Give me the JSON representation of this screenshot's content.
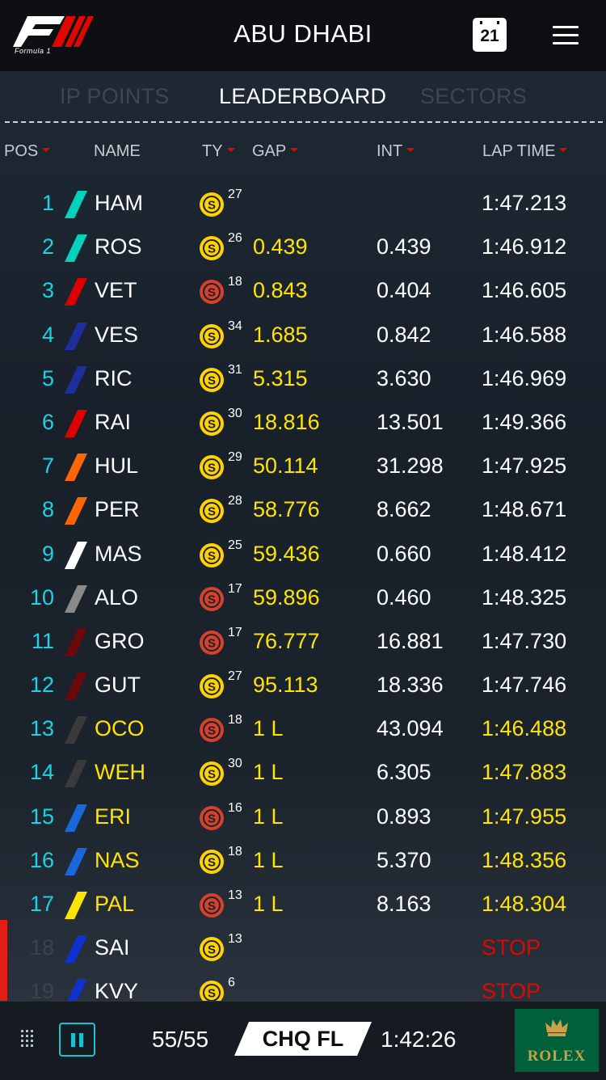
{
  "header": {
    "title": "ABU DHABI",
    "logo_text": "Formula 1",
    "calendar_day": "21"
  },
  "tabs": [
    {
      "label": "CHAMPIONSHIP POINTS",
      "visible_label": "IP POINTS",
      "active": false
    },
    {
      "label": "LEADERBOARD",
      "active": true
    },
    {
      "label": "SECTORS",
      "active": false
    }
  ],
  "columns": {
    "pos": "POS",
    "name": "NAME",
    "tyre": "TY",
    "gap": "GAP",
    "int": "INT",
    "lap_time": "LAP TIME"
  },
  "colors": {
    "mercedes": "#00d2be",
    "ferrari": "#dc0000",
    "red_bull": "#1e2e9c",
    "force_india": "#ff6600",
    "williams": "#ffffff",
    "mclaren": "#8a8a8a",
    "haas": "#6b0a0a",
    "manor": "#3a3a3a",
    "sauber": "#1868db",
    "renault": "#ffe400",
    "toro_rosso": "#1030d0",
    "soft_tyre": "#ffd200",
    "supersoft_tyre": "#d5412a",
    "accent_cyan": "#19d3e6",
    "highlight_yellow": "#ffe400"
  },
  "drivers": [
    {
      "pos": "1",
      "name": "HAM",
      "team": "mercedes",
      "tyre": "soft",
      "tyre_letter": "S",
      "laps": "27",
      "gap": "",
      "int": "",
      "lap_time": "1:47.213",
      "name_style": "white",
      "lap_style": "white"
    },
    {
      "pos": "2",
      "name": "ROS",
      "team": "mercedes",
      "tyre": "soft",
      "tyre_letter": "S",
      "laps": "26",
      "gap": "0.439",
      "int": "0.439",
      "lap_time": "1:46.912",
      "name_style": "white",
      "lap_style": "white"
    },
    {
      "pos": "3",
      "name": "VET",
      "team": "ferrari",
      "tyre": "supersoft",
      "tyre_letter": "S",
      "laps": "18",
      "gap": "0.843",
      "int": "0.404",
      "lap_time": "1:46.605",
      "name_style": "white",
      "lap_style": "white"
    },
    {
      "pos": "4",
      "name": "VES",
      "team": "red_bull",
      "tyre": "soft",
      "tyre_letter": "S",
      "laps": "34",
      "gap": "1.685",
      "int": "0.842",
      "lap_time": "1:46.588",
      "name_style": "white",
      "lap_style": "white"
    },
    {
      "pos": "5",
      "name": "RIC",
      "team": "red_bull",
      "tyre": "soft",
      "tyre_letter": "S",
      "laps": "31",
      "gap": "5.315",
      "int": "3.630",
      "lap_time": "1:46.969",
      "name_style": "white",
      "lap_style": "white"
    },
    {
      "pos": "6",
      "name": "RAI",
      "team": "ferrari",
      "tyre": "soft",
      "tyre_letter": "S",
      "laps": "30",
      "gap": "18.816",
      "int": "13.501",
      "lap_time": "1:49.366",
      "name_style": "white",
      "lap_style": "white"
    },
    {
      "pos": "7",
      "name": "HUL",
      "team": "force_india",
      "tyre": "soft",
      "tyre_letter": "S",
      "laps": "29",
      "gap": "50.114",
      "int": "31.298",
      "lap_time": "1:47.925",
      "name_style": "white",
      "lap_style": "white"
    },
    {
      "pos": "8",
      "name": "PER",
      "team": "force_india",
      "tyre": "soft",
      "tyre_letter": "S",
      "laps": "28",
      "gap": "58.776",
      "int": "8.662",
      "lap_time": "1:48.671",
      "name_style": "white",
      "lap_style": "white"
    },
    {
      "pos": "9",
      "name": "MAS",
      "team": "williams",
      "tyre": "soft",
      "tyre_letter": "S",
      "laps": "25",
      "gap": "59.436",
      "int": "0.660",
      "lap_time": "1:48.412",
      "name_style": "white",
      "lap_style": "white"
    },
    {
      "pos": "10",
      "name": "ALO",
      "team": "mclaren",
      "tyre": "supersoft",
      "tyre_letter": "S",
      "laps": "17",
      "gap": "59.896",
      "int": "0.460",
      "lap_time": "1:48.325",
      "name_style": "white",
      "lap_style": "white"
    },
    {
      "pos": "11",
      "name": "GRO",
      "team": "haas",
      "tyre": "supersoft",
      "tyre_letter": "S",
      "laps": "17",
      "gap": "76.777",
      "int": "16.881",
      "lap_time": "1:47.730",
      "name_style": "white",
      "lap_style": "white"
    },
    {
      "pos": "12",
      "name": "GUT",
      "team": "haas",
      "tyre": "soft",
      "tyre_letter": "S",
      "laps": "27",
      "gap": "95.113",
      "int": "18.336",
      "lap_time": "1:47.746",
      "name_style": "white",
      "lap_style": "white"
    },
    {
      "pos": "13",
      "name": "OCO",
      "team": "manor",
      "tyre": "supersoft",
      "tyre_letter": "S",
      "laps": "18",
      "gap": "1 L",
      "int": "43.094",
      "lap_time": "1:46.488",
      "name_style": "yellow",
      "lap_style": "yellow"
    },
    {
      "pos": "14",
      "name": "WEH",
      "team": "manor",
      "tyre": "soft",
      "tyre_letter": "S",
      "laps": "30",
      "gap": "1 L",
      "int": "6.305",
      "lap_time": "1:47.883",
      "name_style": "yellow",
      "lap_style": "yellow"
    },
    {
      "pos": "15",
      "name": "ERI",
      "team": "sauber",
      "tyre": "supersoft",
      "tyre_letter": "S",
      "laps": "16",
      "gap": "1 L",
      "int": "0.893",
      "lap_time": "1:47.955",
      "name_style": "yellow",
      "lap_style": "yellow"
    },
    {
      "pos": "16",
      "name": "NAS",
      "team": "sauber",
      "tyre": "soft",
      "tyre_letter": "S",
      "laps": "18",
      "gap": "1 L",
      "int": "5.370",
      "lap_time": "1:48.356",
      "name_style": "yellow",
      "lap_style": "yellow"
    },
    {
      "pos": "17",
      "name": "PAL",
      "team": "renault",
      "tyre": "supersoft",
      "tyre_letter": "S",
      "laps": "13",
      "gap": "1 L",
      "int": "8.163",
      "lap_time": "1:48.304",
      "name_style": "yellow",
      "lap_style": "yellow"
    },
    {
      "pos": "18",
      "name": "SAI",
      "team": "toro_rosso",
      "tyre": "soft",
      "tyre_letter": "S",
      "laps": "13",
      "gap": "",
      "int": "",
      "lap_time": "STOP",
      "name_style": "white",
      "lap_style": "red",
      "retired": true
    },
    {
      "pos": "19",
      "name": "KVY",
      "team": "toro_rosso",
      "tyre": "soft",
      "tyre_letter": "S",
      "laps": "6",
      "gap": "",
      "int": "",
      "lap_time": "STOP",
      "name_style": "white",
      "lap_style": "red",
      "retired": true
    }
  ],
  "footer": {
    "lap_count": "55/55",
    "flag_status": "CHQ FL",
    "race_time": "1:42:26",
    "sponsor": "ROLEX"
  }
}
